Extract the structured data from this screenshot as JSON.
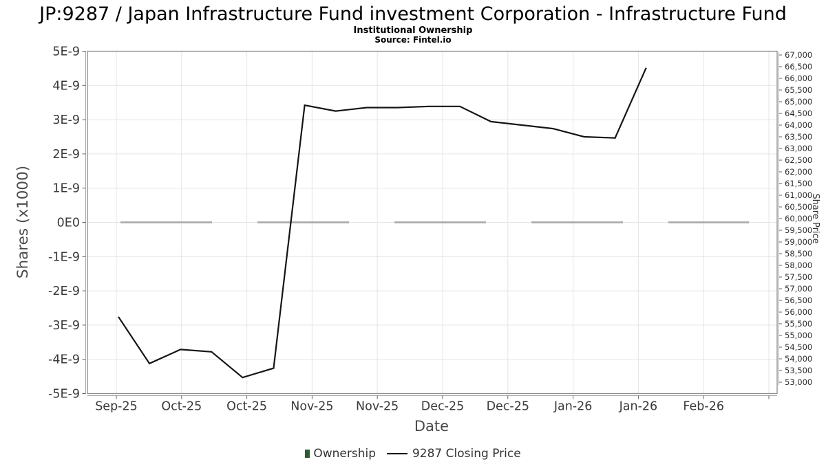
{
  "chart_data": {
    "type": "line",
    "title": "JP:9287 / Japan Infrastructure Fund investment Corporation - Infrastructure Fund",
    "subtitle": "Institutional Ownership",
    "source": "Source: Fintel.io",
    "xlabel": "Date",
    "x_tick_labels": [
      "Sep-25",
      "Oct-25",
      "Oct-25",
      "Nov-25",
      "Nov-25",
      "Dec-25",
      "Dec-25",
      "Jan-26",
      "Jan-26",
      "Feb-26"
    ],
    "left_axis": {
      "label": "Shares (x1000)",
      "min": -5e-09,
      "max": 5e-09,
      "tick_labels": [
        "5E-9",
        "4E-9",
        "3E-9",
        "2E-9",
        "1E-9",
        "0E0",
        "-1E-9",
        "-2E-9",
        "-3E-9",
        "-4E-9",
        "-5E-9"
      ]
    },
    "right_axis": {
      "label": "Share Price",
      "min": 53000,
      "max": 67000,
      "step": 500
    },
    "grid": true,
    "legend_position": "bottom",
    "series": [
      {
        "name": "Ownership",
        "axis": "left",
        "line_style": "dashed",
        "color": "#ababab",
        "legend_color": "#2b5d33",
        "values": [
          0,
          0,
          0,
          0,
          0,
          0,
          0,
          0,
          0,
          0,
          0,
          0,
          0,
          0,
          0,
          0,
          0,
          0,
          0,
          0,
          0
        ]
      },
      {
        "name": "9287 Closing Price",
        "axis": "right",
        "line_style": "solid",
        "color": "#151515",
        "values": [
          55800,
          53800,
          54400,
          54300,
          53200,
          53600,
          64850,
          64600,
          64750,
          64750,
          64800,
          64800,
          64150,
          64000,
          63850,
          63500,
          63450,
          66450
        ]
      }
    ]
  }
}
